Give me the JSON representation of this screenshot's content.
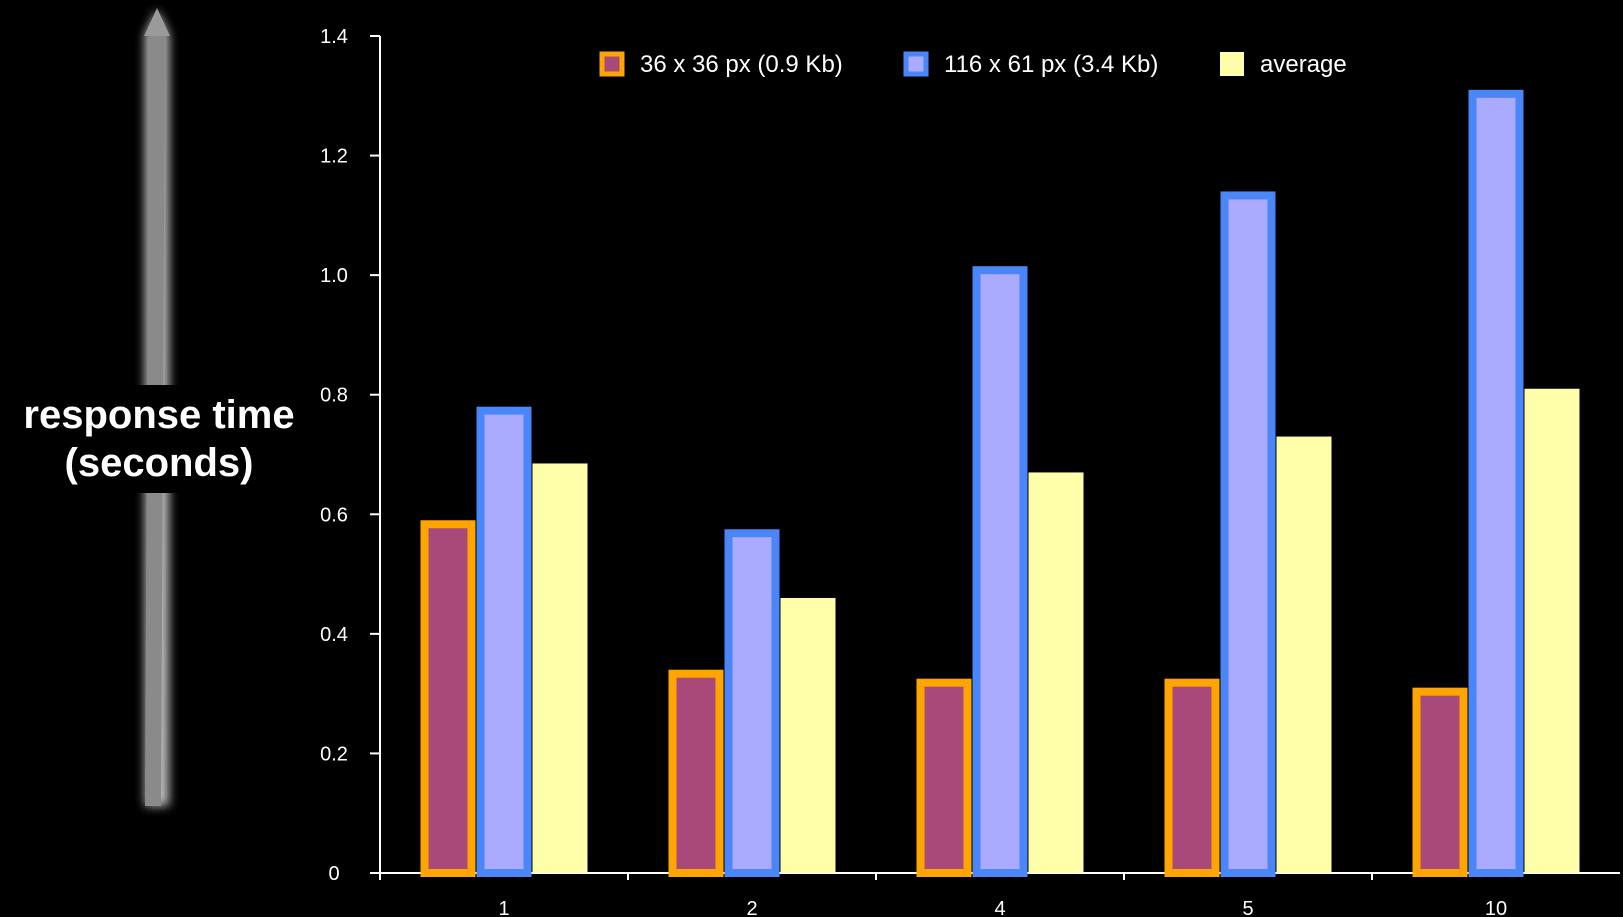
{
  "chart_data": {
    "type": "bar",
    "categories": [
      "1",
      "2",
      "4",
      "5",
      "10"
    ],
    "series": [
      {
        "name": "36 x 36 px (0.9 Kb)",
        "values": [
          0.59,
          0.34,
          0.325,
          0.325,
          0.31
        ],
        "fill": "#a8497a",
        "stroke": "#ffa500"
      },
      {
        "name": "116 x 61 px (3.4 Kb)",
        "values": [
          0.78,
          0.575,
          1.015,
          1.14,
          1.31
        ],
        "fill": "#aaaaff",
        "stroke": "#4a86f7"
      },
      {
        "name": "average",
        "values": [
          0.685,
          0.46,
          0.67,
          0.73,
          0.81
        ],
        "fill": "#ffffaa",
        "stroke": "#ffffaa"
      }
    ],
    "yticks": [
      "0",
      "0.2",
      "0.4",
      "0.6",
      "0.8",
      "1.0",
      "1.2",
      "1.4"
    ],
    "ylim": [
      0,
      1.4
    ],
    "ylabel_lines": [
      "response time",
      "(seconds)"
    ],
    "legend_position": "top",
    "grid": false
  },
  "colors": {
    "background": "#000000",
    "axis": "#ffffff",
    "text": "#ffffff"
  }
}
